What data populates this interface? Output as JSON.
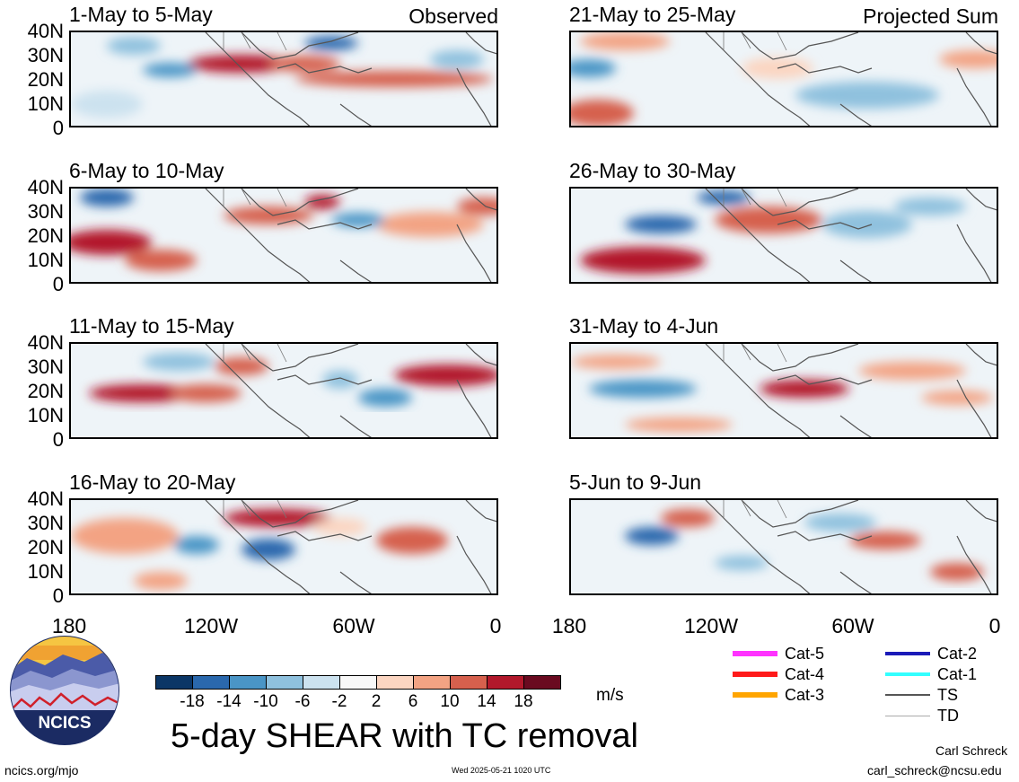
{
  "panels_left": [
    {
      "title": "1-May to 5-May",
      "tag": "Observed"
    },
    {
      "title": "6-May to 10-May",
      "tag": ""
    },
    {
      "title": "11-May to 15-May",
      "tag": ""
    },
    {
      "title": "16-May to 20-May",
      "tag": ""
    }
  ],
  "panels_right": [
    {
      "title": "21-May to 25-May",
      "tag": "Projected Sum"
    },
    {
      "title": "26-May to 30-May",
      "tag": ""
    },
    {
      "title": "31-May to 4-Jun",
      "tag": ""
    },
    {
      "title": "5-Jun to 9-Jun",
      "tag": ""
    }
  ],
  "lat_labels": [
    "40N",
    "30N",
    "20N",
    "10N",
    "0"
  ],
  "lon_labels": [
    "180",
    "120W",
    "60W",
    "0"
  ],
  "colorbar": {
    "ticks": [
      "-18",
      "-14",
      "-10",
      "-6",
      "-2",
      "2",
      "6",
      "10",
      "14",
      "18"
    ],
    "colors": [
      "#0b3666",
      "#2a68ad",
      "#4a95c6",
      "#8fc1de",
      "#cce2ef",
      "#f8f8f8",
      "#fbd5c1",
      "#f3a383",
      "#d6604d",
      "#b2182b",
      "#6a0a20"
    ],
    "units": "m/s"
  },
  "title": "5-day SHEAR with TC removal",
  "logo_text": "NCICS",
  "website": "ncics.org/mjo",
  "timestamp": "Wed 2025-05-21 1020 UTC",
  "author": "Carl Schreck",
  "email": "carl_schreck@ncsu.edu",
  "legend": [
    {
      "label": "Cat-5",
      "color": "#ff33ff"
    },
    {
      "label": "Cat-4",
      "color": "#ff1a1a"
    },
    {
      "label": "Cat-3",
      "color": "#ffa500"
    },
    {
      "label": "Cat-2",
      "color": "#1a1ab8"
    },
    {
      "label": "Cat-1",
      "color": "#33ffff"
    },
    {
      "label": "TS",
      "color": "#555555"
    },
    {
      "label": "TD",
      "color": "#aaaaaa"
    }
  ]
}
